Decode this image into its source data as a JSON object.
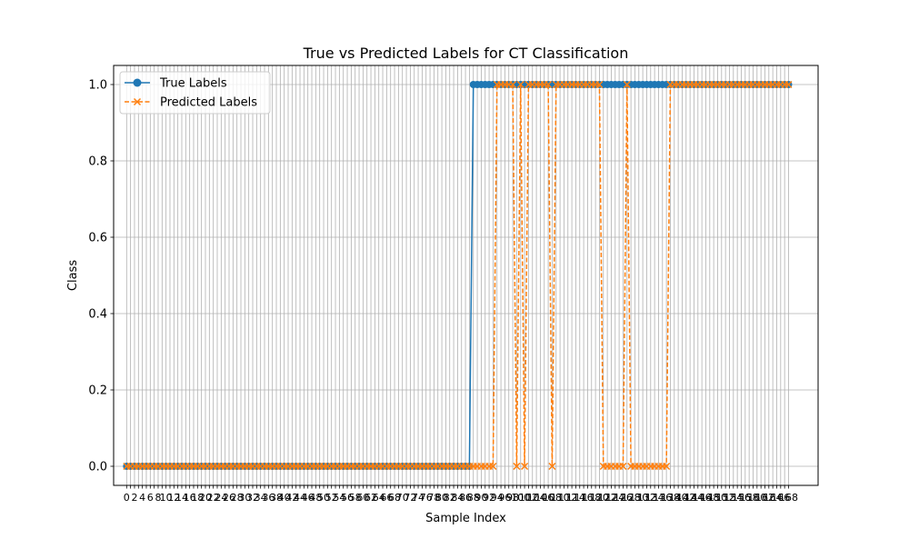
{
  "chart_data": {
    "type": "line",
    "title": "True vs Predicted Labels for CT Classification",
    "xlabel": "Sample Index",
    "ylabel": "Class",
    "xlim": [
      -3.3,
      175.5
    ],
    "ylim": [
      -0.05,
      1.05
    ],
    "yticks": [
      0.0,
      0.2,
      0.4,
      0.6,
      0.8,
      1.0
    ],
    "ytick_labels": [
      "0.0",
      "0.2",
      "0.4",
      "0.6",
      "0.8",
      "1.0"
    ],
    "x_first_tick_label": "0",
    "x_last_tick_label": "168",
    "grid": true,
    "legend_position": "upper-left",
    "colors": {
      "true": "#1f77b4",
      "predicted": "#ff7f0e",
      "grid": "#b0b0b0"
    },
    "series": [
      {
        "name": "True Labels",
        "marker": "circle",
        "linestyle": "solid",
        "segments": [
          {
            "from": 0,
            "to": 87,
            "value": 0
          },
          {
            "from": 88,
            "to": 168,
            "value": 1
          }
        ]
      },
      {
        "name": "Predicted Labels",
        "marker": "x",
        "linestyle": "dashed",
        "segments": [
          {
            "from": 0,
            "to": 93,
            "value": 0
          },
          {
            "from": 94,
            "to": 98,
            "value": 1
          },
          {
            "from": 99,
            "to": 99,
            "value": 0
          },
          {
            "from": 100,
            "to": 100,
            "value": 1
          },
          {
            "from": 101,
            "to": 101,
            "value": 0
          },
          {
            "from": 102,
            "to": 107,
            "value": 1
          },
          {
            "from": 108,
            "to": 108,
            "value": 0
          },
          {
            "from": 109,
            "to": 120,
            "value": 1
          },
          {
            "from": 121,
            "to": 126,
            "value": 0
          },
          {
            "from": 127,
            "to": 127,
            "value": 1
          },
          {
            "from": 128,
            "to": 128,
            "value": 0
          },
          {
            "from": 129,
            "to": 137,
            "value": 0
          },
          {
            "from": 138,
            "to": 168,
            "value": 1
          }
        ]
      }
    ]
  }
}
